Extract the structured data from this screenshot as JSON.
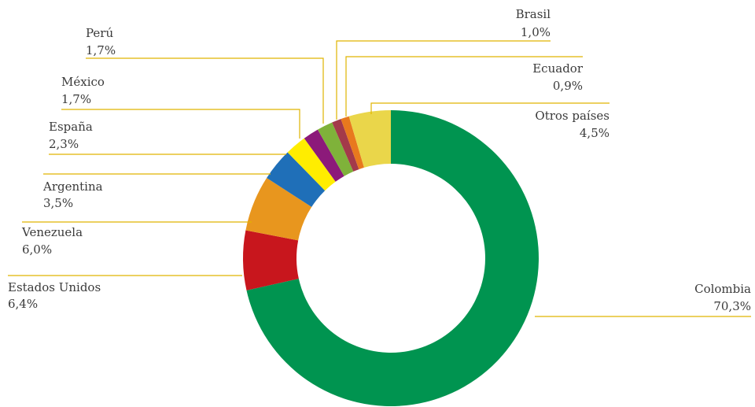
{
  "chart_data": {
    "type": "pie",
    "donut": true,
    "title": "",
    "categories": [
      "Colombia",
      "Estados Unidos",
      "Venezuela",
      "Argentina",
      "España",
      "México",
      "Perú",
      "Brasil",
      "Ecuador",
      "Otros países"
    ],
    "values": [
      70.3,
      6.4,
      6.0,
      3.5,
      2.3,
      1.7,
      1.7,
      1.0,
      0.9,
      4.5
    ],
    "value_labels": [
      "70,3%",
      "6,4%",
      "6,0%",
      "3,5%",
      "2,3%",
      "1,7%",
      "1,7%",
      "1,0%",
      "0,9%",
      "4,5%"
    ],
    "colors": [
      "#009450",
      "#c8161d",
      "#e8961e",
      "#1f6fb8",
      "#ffed00",
      "#8c1a7a",
      "#7fb23a",
      "#a33a4a",
      "#e8791e",
      "#2b4a5a"
    ],
    "other_color": "#ead64a",
    "leader_color": "#e0b400",
    "legend": "none"
  }
}
